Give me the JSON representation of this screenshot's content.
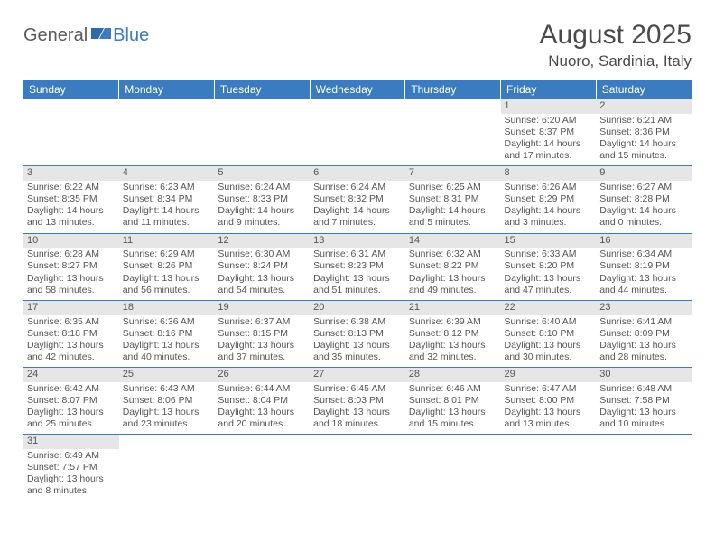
{
  "logo": {
    "general": "General",
    "blue": "Blue"
  },
  "title": "August 2025",
  "location": "Nuoro, Sardinia, Italy",
  "colors": {
    "header_bg": "#3b7bbf",
    "header_text": "#ffffff",
    "daynum_bg": "#e6e6e6",
    "row_border": "#3b7bbf",
    "text": "#555555"
  },
  "weekdays": [
    "Sunday",
    "Monday",
    "Tuesday",
    "Wednesday",
    "Thursday",
    "Friday",
    "Saturday"
  ],
  "weeks": [
    [
      null,
      null,
      null,
      null,
      null,
      {
        "n": "1",
        "sr": "6:20 AM",
        "ss": "8:37 PM",
        "dl": "14 hours and 17 minutes."
      },
      {
        "n": "2",
        "sr": "6:21 AM",
        "ss": "8:36 PM",
        "dl": "14 hours and 15 minutes."
      }
    ],
    [
      {
        "n": "3",
        "sr": "6:22 AM",
        "ss": "8:35 PM",
        "dl": "14 hours and 13 minutes."
      },
      {
        "n": "4",
        "sr": "6:23 AM",
        "ss": "8:34 PM",
        "dl": "14 hours and 11 minutes."
      },
      {
        "n": "5",
        "sr": "6:24 AM",
        "ss": "8:33 PM",
        "dl": "14 hours and 9 minutes."
      },
      {
        "n": "6",
        "sr": "6:24 AM",
        "ss": "8:32 PM",
        "dl": "14 hours and 7 minutes."
      },
      {
        "n": "7",
        "sr": "6:25 AM",
        "ss": "8:31 PM",
        "dl": "14 hours and 5 minutes."
      },
      {
        "n": "8",
        "sr": "6:26 AM",
        "ss": "8:29 PM",
        "dl": "14 hours and 3 minutes."
      },
      {
        "n": "9",
        "sr": "6:27 AM",
        "ss": "8:28 PM",
        "dl": "14 hours and 0 minutes."
      }
    ],
    [
      {
        "n": "10",
        "sr": "6:28 AM",
        "ss": "8:27 PM",
        "dl": "13 hours and 58 minutes."
      },
      {
        "n": "11",
        "sr": "6:29 AM",
        "ss": "8:26 PM",
        "dl": "13 hours and 56 minutes."
      },
      {
        "n": "12",
        "sr": "6:30 AM",
        "ss": "8:24 PM",
        "dl": "13 hours and 54 minutes."
      },
      {
        "n": "13",
        "sr": "6:31 AM",
        "ss": "8:23 PM",
        "dl": "13 hours and 51 minutes."
      },
      {
        "n": "14",
        "sr": "6:32 AM",
        "ss": "8:22 PM",
        "dl": "13 hours and 49 minutes."
      },
      {
        "n": "15",
        "sr": "6:33 AM",
        "ss": "8:20 PM",
        "dl": "13 hours and 47 minutes."
      },
      {
        "n": "16",
        "sr": "6:34 AM",
        "ss": "8:19 PM",
        "dl": "13 hours and 44 minutes."
      }
    ],
    [
      {
        "n": "17",
        "sr": "6:35 AM",
        "ss": "8:18 PM",
        "dl": "13 hours and 42 minutes."
      },
      {
        "n": "18",
        "sr": "6:36 AM",
        "ss": "8:16 PM",
        "dl": "13 hours and 40 minutes."
      },
      {
        "n": "19",
        "sr": "6:37 AM",
        "ss": "8:15 PM",
        "dl": "13 hours and 37 minutes."
      },
      {
        "n": "20",
        "sr": "6:38 AM",
        "ss": "8:13 PM",
        "dl": "13 hours and 35 minutes."
      },
      {
        "n": "21",
        "sr": "6:39 AM",
        "ss": "8:12 PM",
        "dl": "13 hours and 32 minutes."
      },
      {
        "n": "22",
        "sr": "6:40 AM",
        "ss": "8:10 PM",
        "dl": "13 hours and 30 minutes."
      },
      {
        "n": "23",
        "sr": "6:41 AM",
        "ss": "8:09 PM",
        "dl": "13 hours and 28 minutes."
      }
    ],
    [
      {
        "n": "24",
        "sr": "6:42 AM",
        "ss": "8:07 PM",
        "dl": "13 hours and 25 minutes."
      },
      {
        "n": "25",
        "sr": "6:43 AM",
        "ss": "8:06 PM",
        "dl": "13 hours and 23 minutes."
      },
      {
        "n": "26",
        "sr": "6:44 AM",
        "ss": "8:04 PM",
        "dl": "13 hours and 20 minutes."
      },
      {
        "n": "27",
        "sr": "6:45 AM",
        "ss": "8:03 PM",
        "dl": "13 hours and 18 minutes."
      },
      {
        "n": "28",
        "sr": "6:46 AM",
        "ss": "8:01 PM",
        "dl": "13 hours and 15 minutes."
      },
      {
        "n": "29",
        "sr": "6:47 AM",
        "ss": "8:00 PM",
        "dl": "13 hours and 13 minutes."
      },
      {
        "n": "30",
        "sr": "6:48 AM",
        "ss": "7:58 PM",
        "dl": "13 hours and 10 minutes."
      }
    ],
    [
      {
        "n": "31",
        "sr": "6:49 AM",
        "ss": "7:57 PM",
        "dl": "13 hours and 8 minutes."
      },
      null,
      null,
      null,
      null,
      null,
      null
    ]
  ],
  "labels": {
    "sunrise": "Sunrise:",
    "sunset": "Sunset:",
    "daylight": "Daylight:"
  }
}
